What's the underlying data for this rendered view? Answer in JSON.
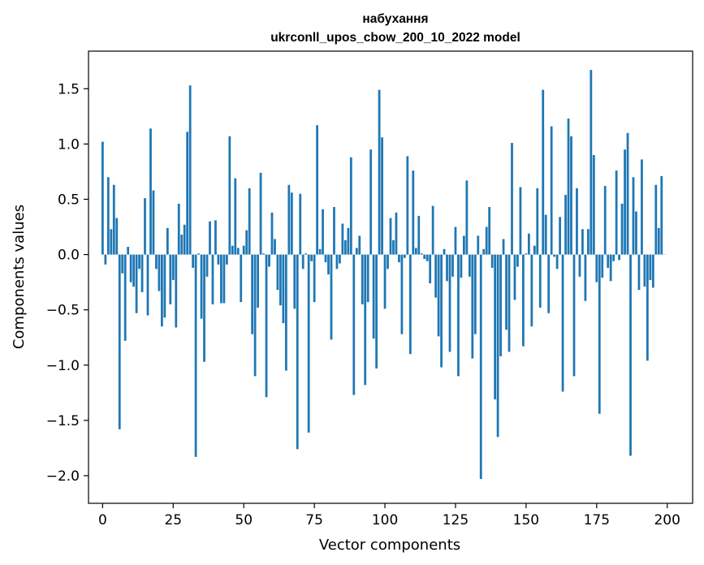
{
  "chart_data": {
    "type": "bar",
    "title": "набухання",
    "subtitle": "ukrconll_upos_cbow_200_10_2022 model",
    "xlabel": "Vector components",
    "ylabel": "Components values",
    "xlim": [
      -5,
      209
    ],
    "ylim": [
      -2.25,
      1.84
    ],
    "xticks": [
      0,
      25,
      50,
      75,
      100,
      125,
      150,
      175,
      200
    ],
    "xtick_labels": [
      "0",
      "25",
      "50",
      "75",
      "100",
      "125",
      "150",
      "175",
      "200"
    ],
    "yticks": [
      -2.0,
      -1.5,
      -1.0,
      -0.5,
      0.0,
      0.5,
      1.0,
      1.5
    ],
    "ytick_labels": [
      "−2.0",
      "−1.5",
      "−1.0",
      "−0.5",
      "0.0",
      "0.5",
      "1.0",
      "1.5"
    ],
    "color": "#1f77b4",
    "values": [
      1.02,
      -0.09,
      0.7,
      0.23,
      0.63,
      0.33,
      -1.58,
      -0.17,
      -0.78,
      0.07,
      -0.25,
      -0.29,
      -0.53,
      -0.13,
      -0.34,
      0.51,
      -0.55,
      1.14,
      0.58,
      -0.13,
      -0.33,
      -0.65,
      -0.57,
      0.24,
      -0.45,
      -0.23,
      -0.66,
      0.46,
      0.18,
      0.27,
      1.11,
      1.53,
      -0.12,
      -1.83,
      0.01,
      -0.58,
      -0.97,
      -0.2,
      0.3,
      -0.45,
      0.31,
      -0.09,
      -0.44,
      -0.44,
      -0.09,
      1.07,
      0.08,
      0.69,
      0.06,
      -0.43,
      0.08,
      0.22,
      0.6,
      -0.72,
      -1.1,
      -0.48,
      0.74,
      0.01,
      -1.29,
      -0.11,
      0.38,
      0.14,
      -0.32,
      -0.46,
      -0.62,
      -1.05,
      0.63,
      0.56,
      -0.49,
      -1.76,
      0.55,
      -0.13,
      0.01,
      -1.61,
      -0.06,
      -0.43,
      1.17,
      0.05,
      0.41,
      -0.07,
      -0.18,
      -0.77,
      0.43,
      -0.13,
      -0.08,
      0.28,
      0.13,
      0.24,
      0.88,
      -1.27,
      0.06,
      0.17,
      -0.45,
      -1.18,
      -0.43,
      0.95,
      -0.76,
      -1.03,
      1.49,
      1.06,
      -0.49,
      -0.13,
      0.33,
      0.13,
      0.38,
      -0.07,
      -0.72,
      -0.03,
      0.89,
      -0.9,
      0.76,
      0.06,
      0.35,
      0.01,
      -0.04,
      -0.06,
      -0.26,
      0.44,
      -0.39,
      -0.74,
      -1.02,
      0.05,
      -0.24,
      -0.88,
      -0.2,
      0.25,
      -1.1,
      -0.21,
      0.17,
      0.67,
      -0.2,
      -0.94,
      -0.72,
      0.17,
      -2.03,
      0.05,
      0.25,
      0.43,
      -0.12,
      -1.31,
      -1.65,
      -0.92,
      0.14,
      -0.68,
      -0.88,
      1.01,
      -0.41,
      -0.11,
      0.61,
      -0.83,
      0.01,
      0.19,
      -0.65,
      0.08,
      0.6,
      -0.48,
      1.49,
      0.36,
      -0.53,
      1.16,
      -0.02,
      -0.13,
      0.34,
      -1.24,
      0.54,
      1.23,
      1.07,
      -1.1,
      0.6,
      -0.2,
      0.23,
      -0.42,
      0.23,
      1.67,
      0.9,
      -0.25,
      -1.44,
      -0.21,
      0.62,
      -0.12,
      -0.24,
      -0.06,
      0.76,
      -0.05,
      0.46,
      0.95,
      1.1,
      -1.82,
      0.7,
      0.39,
      -0.32,
      0.86,
      -0.29,
      -0.96,
      -0.23,
      -0.3,
      0.63,
      0.24,
      0.71,
      0.0
    ]
  }
}
